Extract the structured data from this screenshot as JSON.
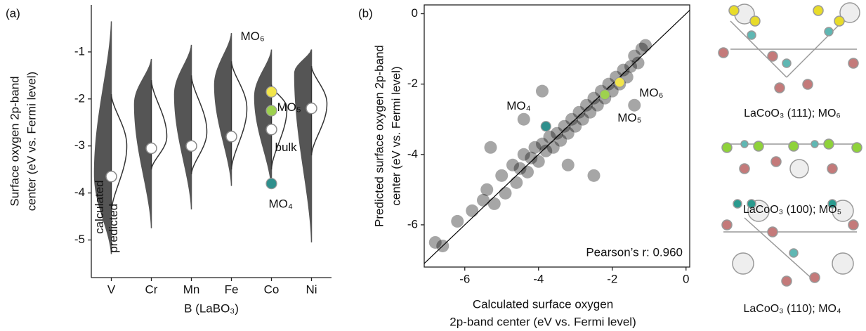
{
  "chart_data": [
    {
      "type": "violin",
      "panel_label": "(a)",
      "xlabel": "B (LaBO₃)",
      "ylabel": [
        "Surface oxygen 2p-band",
        "center (eV vs. Fermi level)"
      ],
      "categories": [
        "V",
        "Cr",
        "Mn",
        "Fe",
        "Co",
        "Ni"
      ],
      "ylim": [
        -5.8,
        0
      ],
      "yticks": [
        -1,
        -2,
        -3,
        -4,
        -5
      ],
      "series": [
        {
          "name": "calculated",
          "color": "#555555",
          "min": [
            -5.3,
            -4.75,
            -4.35,
            -3.85,
            -3.9,
            -5.05
          ],
          "peak": [
            -3.6,
            -2.1,
            -1.9,
            -1.7,
            -1.95,
            -1.45
          ],
          "max": [
            -0.35,
            -1.15,
            -0.85,
            -0.6,
            -0.95,
            -0.95
          ]
        },
        {
          "name": "predicted",
          "color": "#333333",
          "min": [
            -4.4,
            -3.5,
            -3.6,
            -3.5,
            -3.5,
            -3.2
          ],
          "peak": [
            -3.0,
            -2.8,
            -2.7,
            -2.2,
            -2.2,
            -2.1
          ],
          "max": [
            -1.9,
            -1.6,
            -1.5,
            -1.2,
            -1.7,
            -1.3
          ]
        }
      ],
      "medians": [
        -3.65,
        -3.05,
        -3.0,
        -2.8,
        -2.65,
        -2.2
      ],
      "median_labels": [
        null,
        null,
        null,
        null,
        "bulk",
        null
      ],
      "highlights": [
        {
          "name": "MO₆",
          "color": "#f2e54b",
          "values": [
            null,
            null,
            null,
            null,
            -1.85,
            null
          ]
        },
        {
          "name": "MO₅",
          "color": "#9ed14f",
          "values": [
            null,
            null,
            null,
            null,
            -2.25,
            null
          ]
        },
        {
          "name": "MO₄",
          "color": "#2f8f8c",
          "values": [
            null,
            null,
            null,
            null,
            -3.8,
            null
          ]
        }
      ]
    },
    {
      "type": "scatter",
      "panel_label": "(b)",
      "xlabel": [
        "Calculated surface oxygen",
        "2p-band center (eV vs. Fermi level)"
      ],
      "ylabel": [
        "Predicted surface oxygen 2p-band",
        "center (eV vs. Fermi level)"
      ],
      "annotation": "Pearson’s r: 0.960",
      "xlim": [
        -7.1,
        0.1
      ],
      "ylim": [
        -7.2,
        0.25
      ],
      "xticks": [
        -6,
        -4,
        -2,
        0
      ],
      "yticks": [
        0,
        -2,
        -4,
        -6
      ],
      "color": "#000000",
      "x": [
        -6.8,
        -6.6,
        -6.2,
        -5.8,
        -5.5,
        -5.4,
        -5.2,
        -5.0,
        -4.9,
        -4.7,
        -4.6,
        -4.5,
        -4.4,
        -4.3,
        -4.2,
        -4.1,
        -4.0,
        -3.9,
        -3.8,
        -3.7,
        -3.6,
        -3.5,
        -3.4,
        -3.3,
        -3.2,
        -3.1,
        -3.0,
        -2.9,
        -2.8,
        -2.7,
        -2.6,
        -2.5,
        -2.4,
        -2.3,
        -2.2,
        -2.1,
        -2.0,
        -1.9,
        -1.8,
        -1.7,
        -1.6,
        -1.5,
        -1.4,
        -1.3,
        -1.2,
        -1.1,
        -3.9,
        -2.5,
        -5.3,
        -1.4,
        -4.4,
        -3.2
      ],
      "y": [
        -6.5,
        -6.6,
        -5.9,
        -5.6,
        -5.3,
        -5.0,
        -5.4,
        -4.6,
        -5.1,
        -4.3,
        -4.8,
        -4.4,
        -4.0,
        -4.5,
        -4.1,
        -3.8,
        -4.2,
        -3.7,
        -3.9,
        -3.5,
        -3.8,
        -3.4,
        -3.6,
        -3.2,
        -3.4,
        -3.0,
        -3.2,
        -2.8,
        -3.0,
        -2.6,
        -2.8,
        -2.4,
        -2.6,
        -2.2,
        -2.4,
        -2.0,
        -2.2,
        -1.8,
        -2.0,
        -1.6,
        -1.8,
        -1.5,
        -1.2,
        -1.4,
        -1.0,
        -0.9,
        -2.2,
        -4.6,
        -3.8,
        -2.6,
        -3.0,
        -4.3
      ],
      "highlights": [
        {
          "name": "MO₆",
          "color": "#f2e54b",
          "x": [
            -1.8
          ],
          "y": [
            -1.95
          ]
        },
        {
          "name": "MO₅",
          "color": "#9ed14f",
          "x": [
            -2.2
          ],
          "y": [
            -2.3
          ]
        },
        {
          "name": "MO₄",
          "color": "#2f8f8c",
          "x": [
            -3.8
          ],
          "y": [
            -3.2
          ]
        }
      ]
    }
  ],
  "structures": [
    {
      "label": "LaCoO₃ (111); MO₆"
    },
    {
      "label": "LaCoO₃ (100); MO₅"
    },
    {
      "label": "LaCoO₃ (110); MO₄"
    }
  ]
}
